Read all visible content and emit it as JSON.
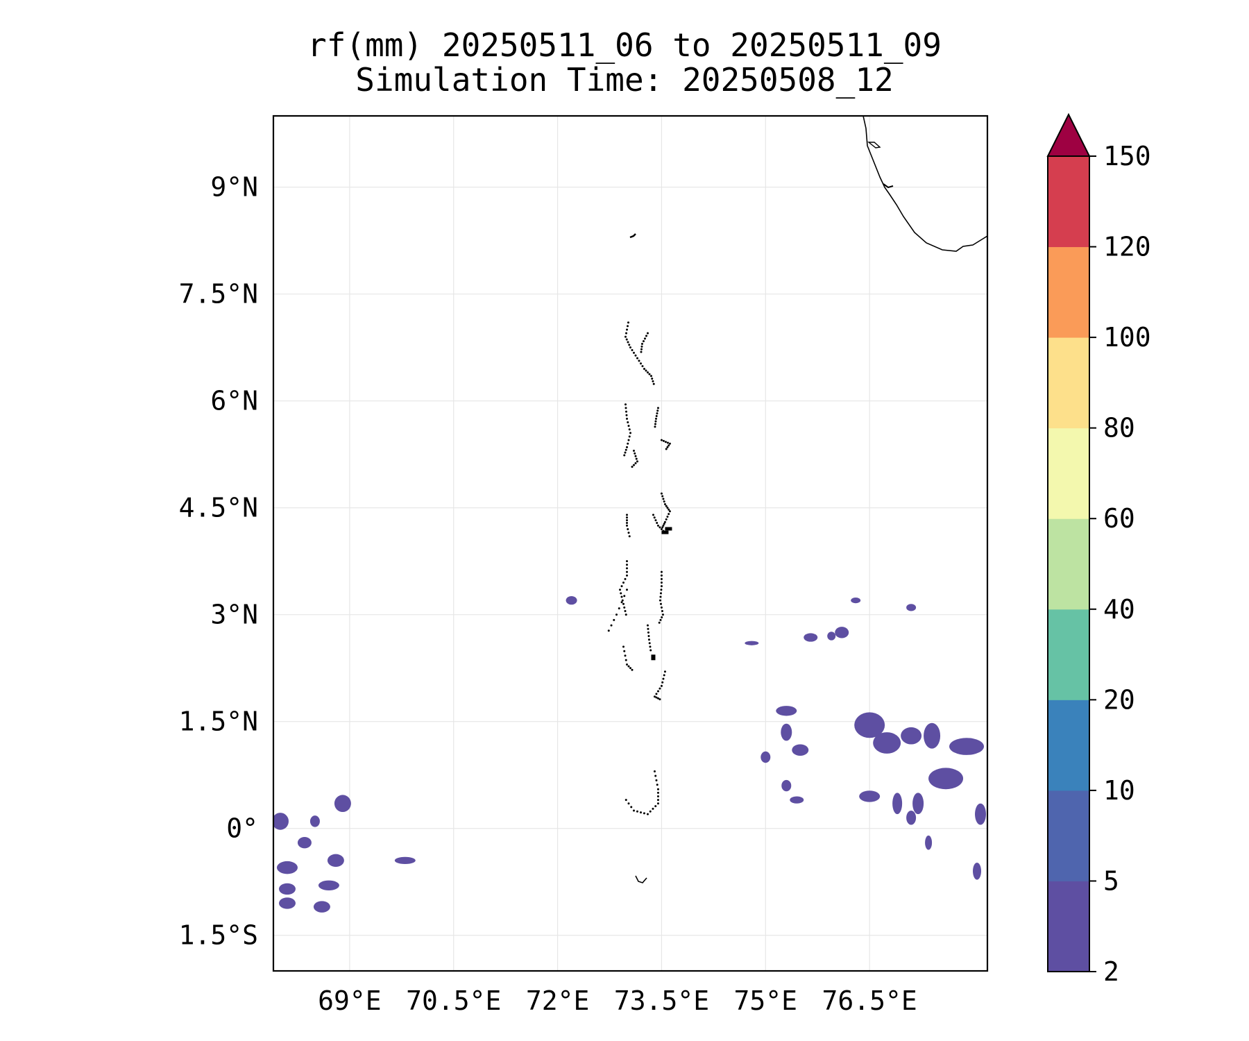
{
  "title_line1": "rf(mm) 20250511_06 to 20250511_09",
  "title_line2": "Simulation Time: 20250508_12",
  "map": {
    "lon_range": [
      67.9,
      78.2
    ],
    "lat_range": [
      -2.0,
      10.0
    ],
    "lon_ticks": [
      {
        "value": 69.0,
        "label": "69°E"
      },
      {
        "value": 70.5,
        "label": "70.5°E"
      },
      {
        "value": 72.0,
        "label": "72°E"
      },
      {
        "value": 73.5,
        "label": "73.5°E"
      },
      {
        "value": 75.0,
        "label": "75°E"
      },
      {
        "value": 76.5,
        "label": "76.5°E"
      }
    ],
    "lat_ticks": [
      {
        "value": 9.0,
        "label": "9°N"
      },
      {
        "value": 7.5,
        "label": "7.5°N"
      },
      {
        "value": 6.0,
        "label": "6°N"
      },
      {
        "value": 4.5,
        "label": "4.5°N"
      },
      {
        "value": 3.0,
        "label": "3°N"
      },
      {
        "value": 1.5,
        "label": "1.5°N"
      },
      {
        "value": 0.0,
        "label": "0°"
      },
      {
        "value": -1.5,
        "label": "1.5°S"
      }
    ],
    "grid": true,
    "coastline_color": "#000000"
  },
  "colorbar": {
    "levels": [
      "2",
      "5",
      "10",
      "20",
      "40",
      "60",
      "80",
      "100",
      "120",
      "150"
    ],
    "colors": [
      "#5e4fa2",
      "#4f65ae",
      "#3a82bb",
      "#66c2a5",
      "#bde3a2",
      "#f3f8ae",
      "#fde08b",
      "#fa9b58",
      "#d53e4f"
    ],
    "extend_color": "#9e0142",
    "extend": "max"
  },
  "chart_data": {
    "type": "heatmap",
    "variable": "rf(mm)",
    "lon_range": [
      67.9,
      78.2
    ],
    "lat_range": [
      -2.0,
      10.0
    ],
    "levels": [
      2,
      5,
      10,
      20,
      40,
      60,
      80,
      100,
      120,
      150
    ],
    "rain_patches_2_5mm": [
      {
        "lon": 68.0,
        "lat": 0.1,
        "rx": 0.12,
        "ry": 0.12
      },
      {
        "lon": 68.35,
        "lat": -0.2,
        "rx": 0.1,
        "ry": 0.08
      },
      {
        "lon": 68.1,
        "lat": -0.55,
        "rx": 0.15,
        "ry": 0.09
      },
      {
        "lon": 68.1,
        "lat": -0.85,
        "rx": 0.12,
        "ry": 0.08
      },
      {
        "lon": 68.1,
        "lat": -1.05,
        "rx": 0.12,
        "ry": 0.08
      },
      {
        "lon": 68.6,
        "lat": -1.1,
        "rx": 0.12,
        "ry": 0.08
      },
      {
        "lon": 68.7,
        "lat": -0.8,
        "rx": 0.15,
        "ry": 0.07
      },
      {
        "lon": 68.8,
        "lat": -0.45,
        "rx": 0.12,
        "ry": 0.09
      },
      {
        "lon": 68.5,
        "lat": 0.1,
        "rx": 0.07,
        "ry": 0.08
      },
      {
        "lon": 68.9,
        "lat": 0.35,
        "rx": 0.12,
        "ry": 0.12
      },
      {
        "lon": 69.8,
        "lat": -0.45,
        "rx": 0.15,
        "ry": 0.05
      },
      {
        "lon": 72.2,
        "lat": 3.2,
        "rx": 0.08,
        "ry": 0.06
      },
      {
        "lon": 74.8,
        "lat": 2.6,
        "rx": 0.1,
        "ry": 0.03
      },
      {
        "lon": 75.65,
        "lat": 2.68,
        "rx": 0.1,
        "ry": 0.06
      },
      {
        "lon": 75.95,
        "lat": 2.7,
        "rx": 0.06,
        "ry": 0.06
      },
      {
        "lon": 76.1,
        "lat": 2.75,
        "rx": 0.1,
        "ry": 0.08
      },
      {
        "lon": 76.5,
        "lat": 1.45,
        "rx": 0.22,
        "ry": 0.18
      },
      {
        "lon": 76.75,
        "lat": 1.2,
        "rx": 0.2,
        "ry": 0.15
      },
      {
        "lon": 77.1,
        "lat": 1.3,
        "rx": 0.15,
        "ry": 0.12
      },
      {
        "lon": 77.4,
        "lat": 1.3,
        "rx": 0.12,
        "ry": 0.18
      },
      {
        "lon": 77.9,
        "lat": 1.15,
        "rx": 0.25,
        "ry": 0.12
      },
      {
        "lon": 77.6,
        "lat": 0.7,
        "rx": 0.25,
        "ry": 0.15
      },
      {
        "lon": 77.2,
        "lat": 0.35,
        "rx": 0.08,
        "ry": 0.15
      },
      {
        "lon": 76.9,
        "lat": 0.35,
        "rx": 0.07,
        "ry": 0.15
      },
      {
        "lon": 76.5,
        "lat": 0.45,
        "rx": 0.15,
        "ry": 0.08
      },
      {
        "lon": 75.3,
        "lat": 1.65,
        "rx": 0.15,
        "ry": 0.07
      },
      {
        "lon": 75.3,
        "lat": 1.35,
        "rx": 0.08,
        "ry": 0.12
      },
      {
        "lon": 75.5,
        "lat": 1.1,
        "rx": 0.12,
        "ry": 0.08
      },
      {
        "lon": 75.0,
        "lat": 1.0,
        "rx": 0.07,
        "ry": 0.08
      },
      {
        "lon": 75.3,
        "lat": 0.6,
        "rx": 0.07,
        "ry": 0.08
      },
      {
        "lon": 75.45,
        "lat": 0.4,
        "rx": 0.1,
        "ry": 0.05
      },
      {
        "lon": 77.1,
        "lat": 0.15,
        "rx": 0.07,
        "ry": 0.1
      },
      {
        "lon": 78.1,
        "lat": 0.2,
        "rx": 0.08,
        "ry": 0.15
      },
      {
        "lon": 78.05,
        "lat": -0.6,
        "rx": 0.06,
        "ry": 0.12
      },
      {
        "lon": 77.35,
        "lat": -0.2,
        "rx": 0.05,
        "ry": 0.1
      },
      {
        "lon": 77.1,
        "lat": 3.1,
        "rx": 0.07,
        "ry": 0.05
      },
      {
        "lon": 76.3,
        "lat": 3.2,
        "rx": 0.07,
        "ry": 0.04
      }
    ]
  }
}
